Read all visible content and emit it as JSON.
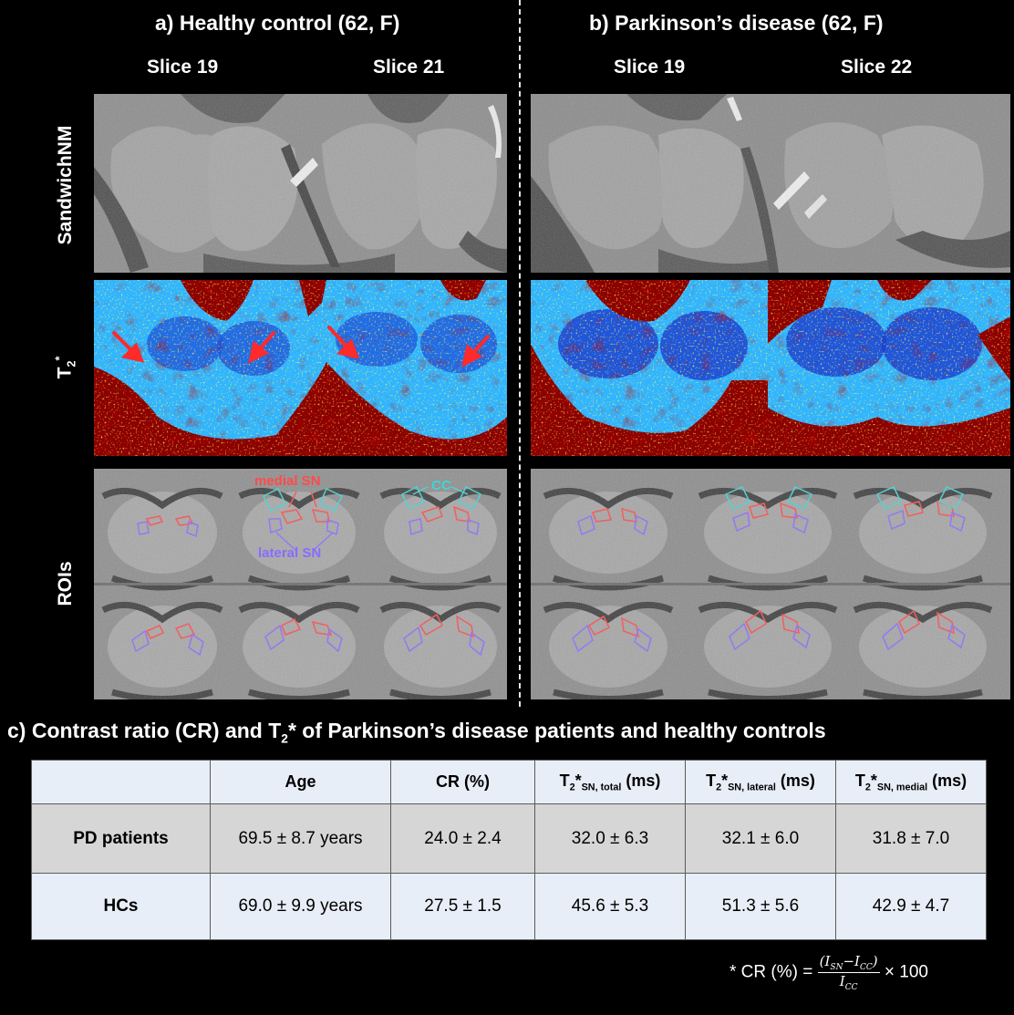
{
  "panels": {
    "a": {
      "title": "a) Healthy control (62, F)",
      "slices": [
        "Slice 19",
        "Slice 21"
      ]
    },
    "b": {
      "title": "b) Parkinson’s disease (62, F)",
      "slices": [
        "Slice 19",
        "Slice 22"
      ]
    }
  },
  "rows": {
    "sandwich": "SandwichNM",
    "t2_base": "T",
    "t2_sub": "2",
    "t2_star": "*",
    "rois": "ROIs"
  },
  "annotations": {
    "medial": "medial SN",
    "cc": "CC",
    "lateral": "lateral SN"
  },
  "colors": {
    "medial": "#ff4b4b",
    "cc": "#3fd6d6",
    "lateral": "#8a6cff",
    "arrow": "#ff2a2a",
    "jet_bg": "#2aa6ff",
    "jet_high": "#8b0000"
  },
  "section_c": {
    "title_pre": "c) Contrast ratio (CR) and T",
    "title_sub": "2",
    "title_post": "* of Parkinson’s disease patients and healthy controls"
  },
  "table": {
    "headers": {
      "age": "Age",
      "cr": "CR (%)",
      "t2_base": "T",
      "t2_sub": "2",
      "t2_star": "*",
      "total_sub": "SN, total",
      "lateral_sub": "SN, lateral",
      "medial_sub": "SN, medial",
      "unit": "(ms)"
    },
    "rows": [
      {
        "label": "PD patients",
        "age": "69.5 ± 8.7 years",
        "cr": "24.0 ± 2.4",
        "total": "32.0 ± 6.3",
        "lateral": "32.1 ± 6.0",
        "medial": "31.8 ± 7.0"
      },
      {
        "label": "HCs",
        "age": "69.0 ± 9.9 years",
        "cr": "27.5 ± 1.5",
        "total": "45.6 ± 5.3",
        "lateral": "51.3 ± 5.6",
        "medial": "42.9 ± 4.7"
      }
    ]
  },
  "formula": {
    "prefix": "* CR (%) =",
    "num_open": "(",
    "num_i1": "I",
    "num_s1": "SN",
    "num_minus": "−",
    "num_i2": "I",
    "num_s2": "CC",
    "num_close": ")",
    "den_i": "I",
    "den_s": "CC",
    "suffix": "× 100"
  }
}
